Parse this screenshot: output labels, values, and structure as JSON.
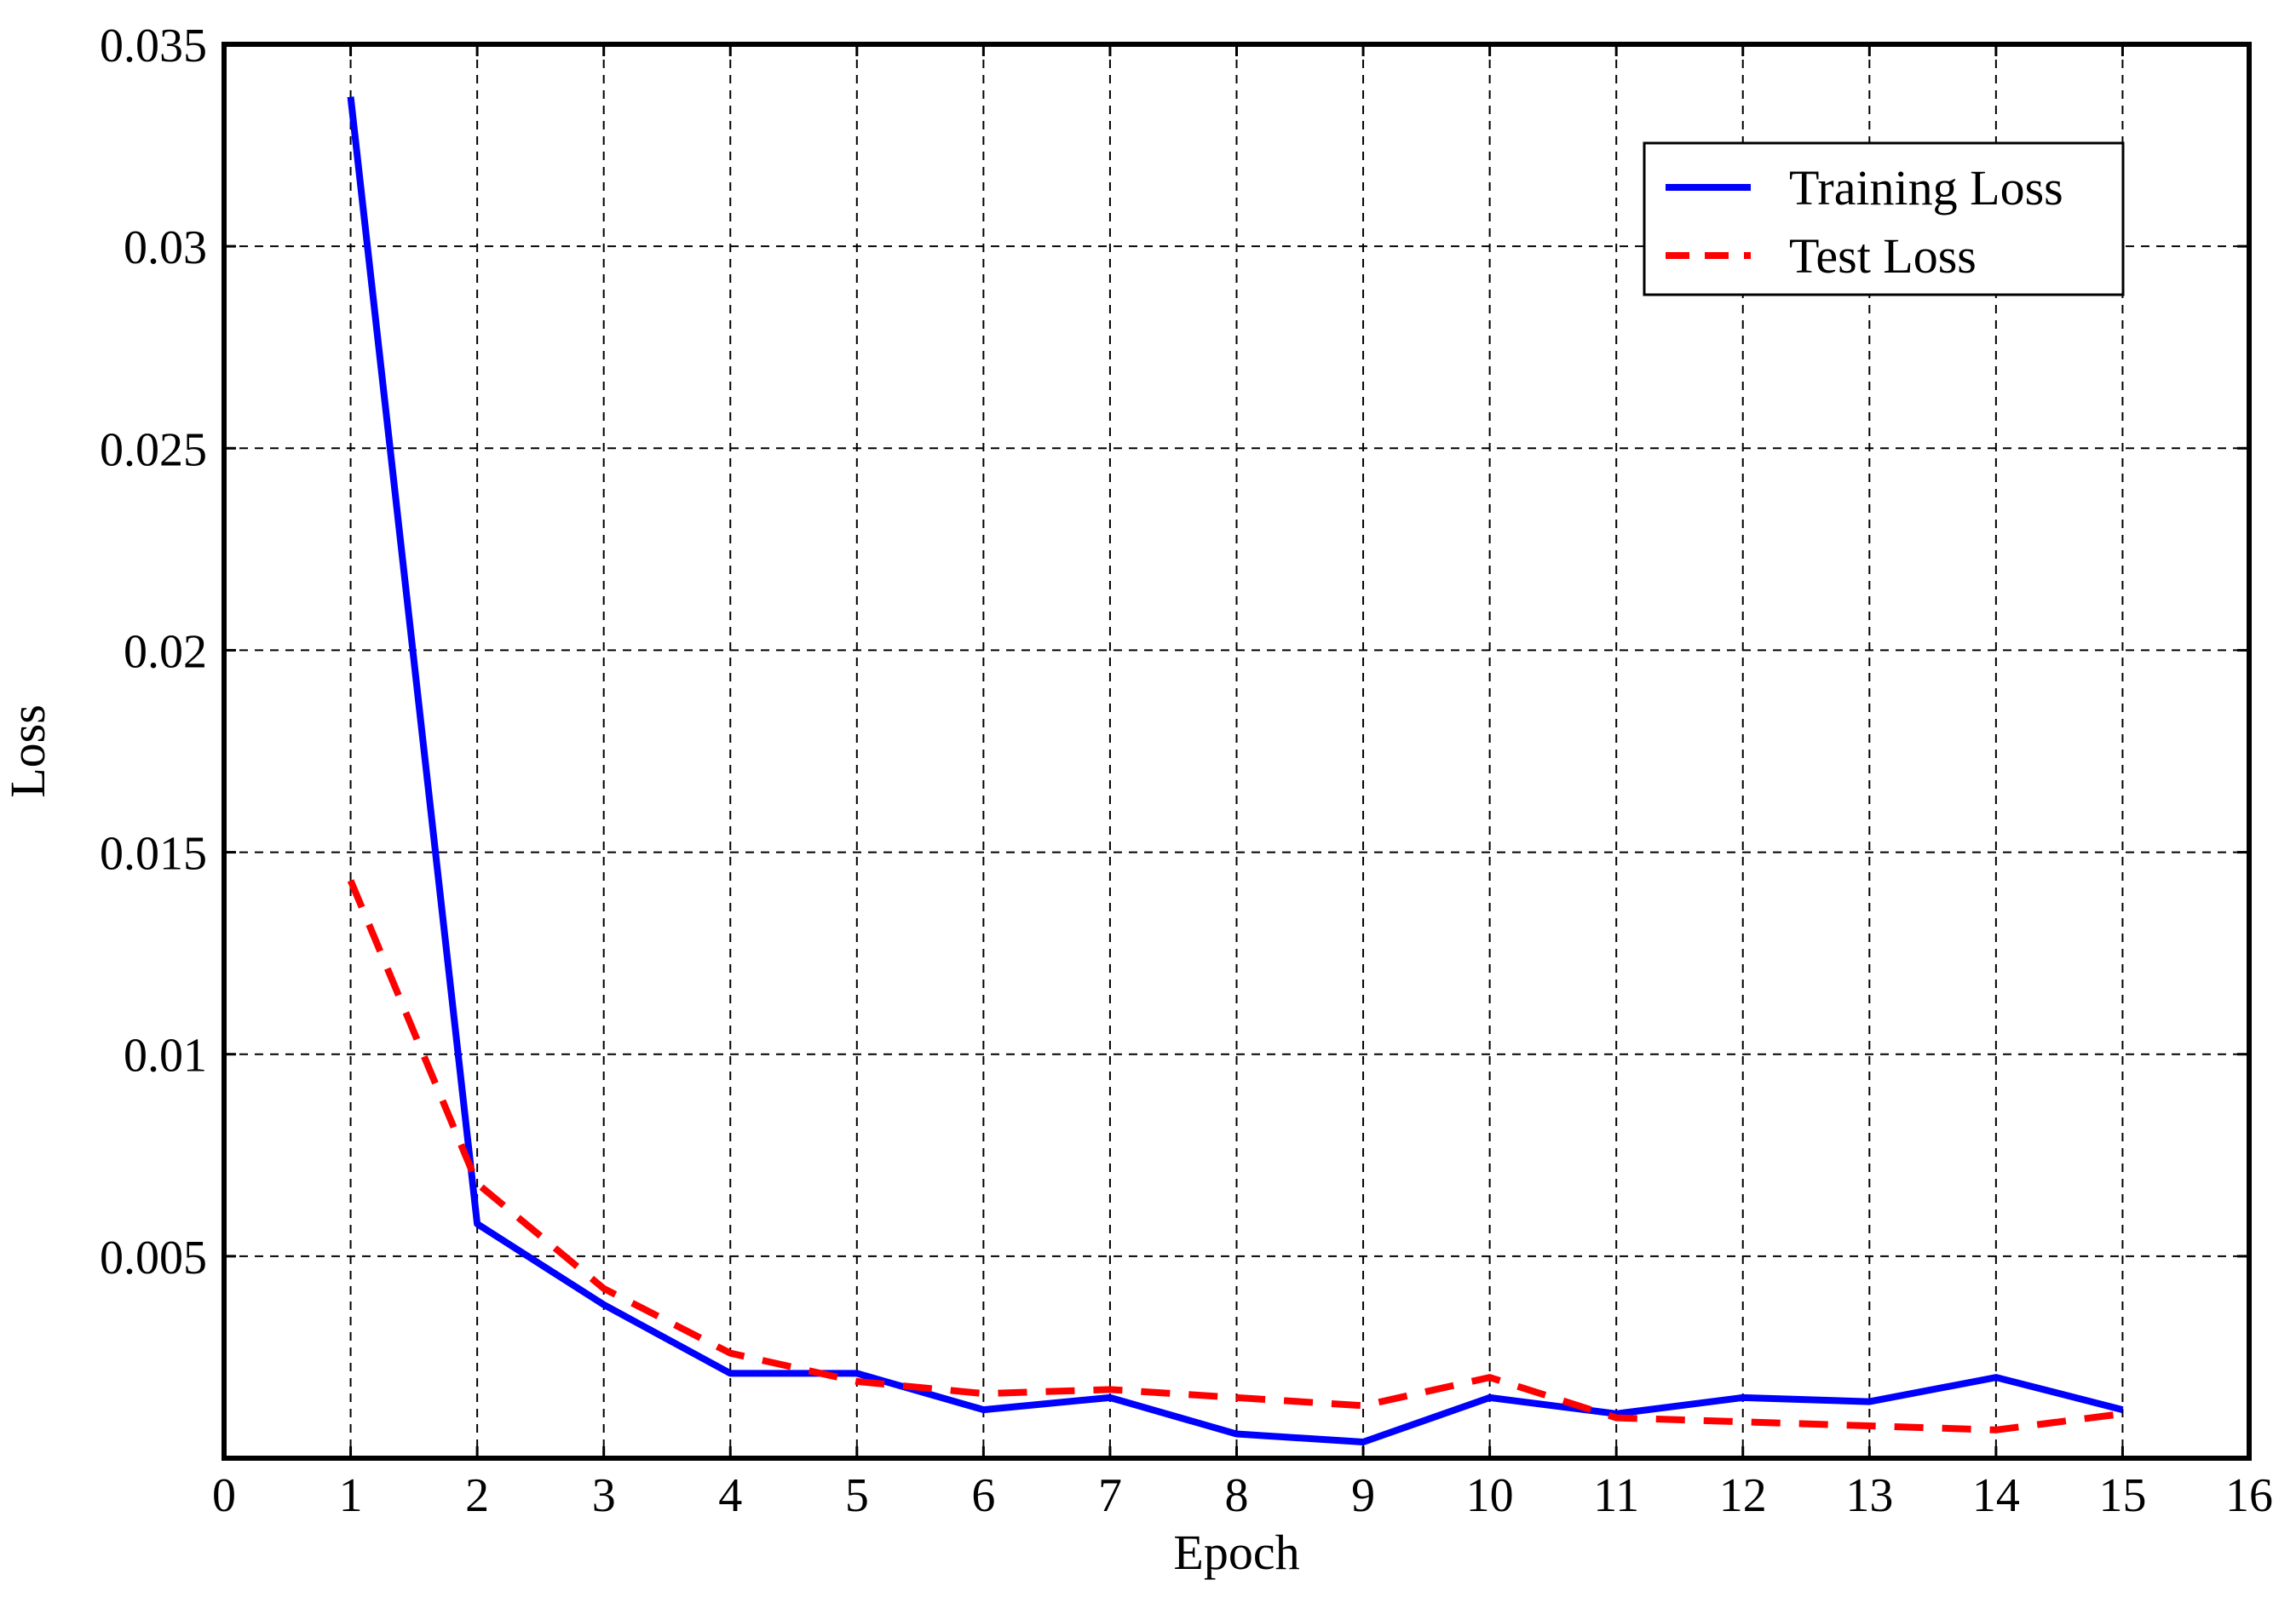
{
  "chart_data": {
    "type": "line",
    "title": "",
    "xlabel": "Epoch",
    "ylabel": "Loss",
    "xlim": [
      0,
      16
    ],
    "ylim": [
      0,
      0.035
    ],
    "xticks": [
      "0",
      "1",
      "2",
      "3",
      "4",
      "5",
      "6",
      "7",
      "8",
      "9",
      "10",
      "11",
      "12",
      "13",
      "14",
      "15",
      "16"
    ],
    "yticks": [
      "0.005",
      "0.01",
      "0.015",
      "0.02",
      "0.025",
      "0.03",
      "0.035"
    ],
    "grid": true,
    "legend_position": "top-right",
    "x": [
      1,
      2,
      3,
      4,
      5,
      6,
      7,
      8,
      9,
      10,
      11,
      12,
      13,
      14,
      15
    ],
    "series": [
      {
        "name": "Training Loss",
        "color": "#0000ff",
        "style": "solid",
        "values": [
          0.0337,
          0.0058,
          0.0038,
          0.0021,
          0.0021,
          0.0012,
          0.0015,
          0.0006,
          0.0004,
          0.0015,
          0.0011,
          0.0015,
          0.0014,
          0.002,
          0.0012
        ]
      },
      {
        "name": "Test Loss",
        "color": "#ff0000",
        "style": "dashed",
        "values": [
          0.0143,
          0.0068,
          0.0042,
          0.0026,
          0.0019,
          0.0016,
          0.0017,
          0.0015,
          0.0013,
          0.002,
          0.001,
          0.0009,
          0.0008,
          0.0007,
          0.0011
        ]
      }
    ]
  }
}
